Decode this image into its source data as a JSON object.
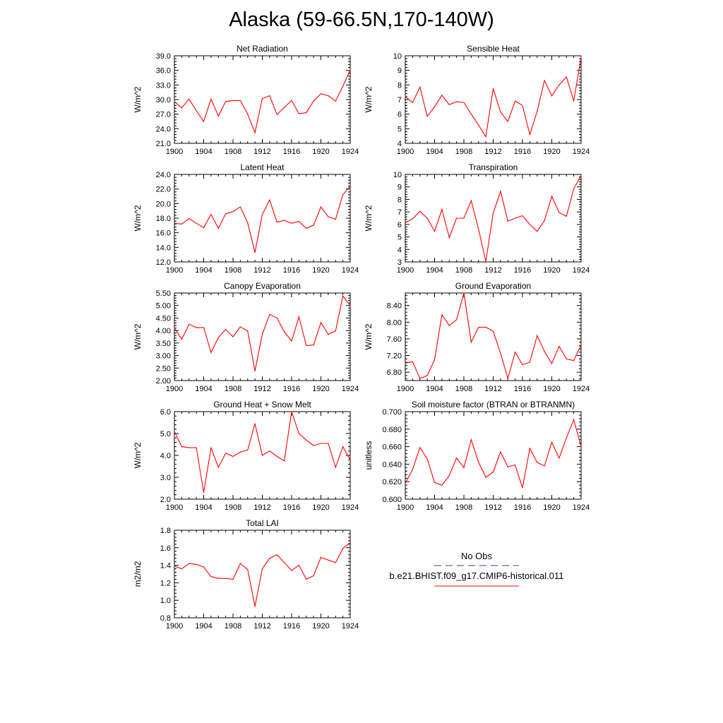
{
  "page_title": "Alaska (59-66.5N,170-140W)",
  "legend": {
    "obs_label": "No Obs",
    "model_label": "b.e21.BHIST.f09_g17.CMIP6-historical.011",
    "obs_color": "#3b3b9a",
    "model_color": "#ff0000"
  },
  "chart_data": [
    {
      "type": "line",
      "title": "Net Radiation",
      "ylabel": "W/m^2",
      "xlim": [
        1900,
        1924
      ],
      "ylim": [
        21.0,
        39.0
      ],
      "xticks": [
        "1900",
        "1904",
        "1908",
        "1912",
        "1916",
        "1920",
        "1924"
      ],
      "yticks": [
        "21.0",
        "24.0",
        "27.0",
        "30.0",
        "33.0",
        "36.0",
        "39.0"
      ],
      "x": [
        1900,
        1901,
        1902,
        1903,
        1904,
        1905,
        1906,
        1907,
        1908,
        1909,
        1910,
        1911,
        1912,
        1913,
        1914,
        1915,
        1916,
        1917,
        1918,
        1919,
        1920,
        1921,
        1922,
        1923,
        1924
      ],
      "values": [
        29.6,
        28.3,
        30.1,
        27.7,
        25.5,
        30.1,
        26.6,
        29.6,
        29.8,
        29.8,
        27.0,
        23.2,
        30.2,
        30.8,
        26.9,
        28.4,
        29.8,
        27.1,
        27.3,
        29.7,
        31.2,
        30.8,
        29.7,
        32.7,
        36.1
      ]
    },
    {
      "type": "line",
      "title": "Sensible Heat",
      "ylabel": "W/m^2",
      "xlim": [
        1900,
        1924
      ],
      "ylim": [
        4,
        10
      ],
      "xticks": [
        "1900",
        "1904",
        "1908",
        "1912",
        "1916",
        "1920",
        "1924"
      ],
      "yticks": [
        "4",
        "5",
        "6",
        "7",
        "8",
        "9",
        "10"
      ],
      "x": [
        1900,
        1901,
        1902,
        1903,
        1904,
        1905,
        1906,
        1907,
        1908,
        1909,
        1910,
        1911,
        1912,
        1913,
        1914,
        1915,
        1916,
        1917,
        1918,
        1919,
        1920,
        1921,
        1922,
        1923,
        1924
      ],
      "values": [
        7.2,
        6.8,
        7.85,
        5.85,
        6.5,
        7.3,
        6.65,
        6.85,
        6.8,
        6.0,
        5.25,
        4.45,
        7.75,
        6.15,
        5.5,
        6.9,
        6.6,
        4.6,
        6.2,
        8.3,
        7.25,
        8.0,
        8.55,
        6.9,
        9.9
      ]
    },
    {
      "type": "line",
      "title": "Latent Heat",
      "ylabel": "W/m^2",
      "xlim": [
        1900,
        1924
      ],
      "ylim": [
        12.0,
        24.0
      ],
      "xticks": [
        "1900",
        "1904",
        "1908",
        "1912",
        "1916",
        "1920",
        "1924"
      ],
      "yticks": [
        "12.0",
        "14.0",
        "16.0",
        "18.0",
        "20.0",
        "22.0",
        "24.0"
      ],
      "x": [
        1900,
        1901,
        1902,
        1903,
        1904,
        1905,
        1906,
        1907,
        1908,
        1909,
        1910,
        1911,
        1912,
        1913,
        1914,
        1915,
        1916,
        1917,
        1918,
        1919,
        1920,
        1921,
        1922,
        1923,
        1924
      ],
      "values": [
        17.3,
        17.2,
        17.95,
        17.3,
        16.7,
        18.5,
        16.6,
        18.6,
        18.9,
        19.55,
        17.35,
        13.3,
        18.5,
        20.5,
        17.45,
        17.7,
        17.3,
        17.55,
        16.6,
        17.05,
        19.55,
        18.2,
        17.85,
        21.2,
        22.4
      ]
    },
    {
      "type": "line",
      "title": "Transpiration",
      "ylabel": "W/m^2",
      "xlim": [
        1900,
        1924
      ],
      "ylim": [
        3,
        10
      ],
      "xticks": [
        "1900",
        "1904",
        "1908",
        "1912",
        "1916",
        "1920",
        "1924"
      ],
      "yticks": [
        "3",
        "4",
        "5",
        "6",
        "7",
        "8",
        "9",
        "10"
      ],
      "x": [
        1900,
        1901,
        1902,
        1903,
        1904,
        1905,
        1906,
        1907,
        1908,
        1909,
        1910,
        1911,
        1912,
        1913,
        1914,
        1915,
        1916,
        1917,
        1918,
        1919,
        1920,
        1921,
        1922,
        1923,
        1924
      ],
      "values": [
        6.15,
        6.45,
        7.05,
        6.5,
        5.45,
        7.2,
        4.95,
        6.5,
        6.5,
        7.9,
        5.6,
        3.05,
        6.9,
        8.65,
        6.25,
        6.5,
        6.7,
        6.0,
        5.45,
        6.3,
        8.25,
        6.95,
        6.65,
        8.85,
        9.9
      ]
    },
    {
      "type": "line",
      "title": "Canopy Evaporation",
      "ylabel": "W/m^2",
      "xlim": [
        1900,
        1924
      ],
      "ylim": [
        2.0,
        5.5
      ],
      "xticks": [
        "1900",
        "1904",
        "1908",
        "1912",
        "1916",
        "1920",
        "1924"
      ],
      "yticks": [
        "2.00",
        "2.50",
        "3.00",
        "3.50",
        "4.00",
        "4.50",
        "5.00",
        "5.50"
      ],
      "x": [
        1900,
        1901,
        1902,
        1903,
        1904,
        1905,
        1906,
        1907,
        1908,
        1909,
        1910,
        1911,
        1912,
        1913,
        1914,
        1915,
        1916,
        1917,
        1918,
        1919,
        1920,
        1921,
        1922,
        1923,
        1924
      ],
      "values": [
        4.1,
        3.65,
        4.25,
        4.12,
        4.12,
        3.12,
        3.72,
        4.05,
        3.75,
        4.15,
        3.98,
        2.38,
        3.85,
        4.65,
        4.5,
        3.95,
        3.58,
        4.55,
        3.4,
        3.42,
        4.32,
        3.85,
        3.98,
        5.38,
        5.0
      ]
    },
    {
      "type": "line",
      "title": "Ground Evaporation",
      "ylabel": "W/m^2",
      "xlim": [
        1900,
        1924
      ],
      "ylim": [
        6.6,
        8.7
      ],
      "xticks": [
        "1900",
        "1904",
        "1908",
        "1912",
        "1916",
        "1920",
        "1924"
      ],
      "yticks": [
        "6.80",
        "7.20",
        "7.60",
        "8.00",
        "8.40"
      ],
      "x": [
        1900,
        1901,
        1902,
        1903,
        1904,
        1905,
        1906,
        1907,
        1908,
        1909,
        1910,
        1911,
        1912,
        1913,
        1914,
        1915,
        1916,
        1917,
        1918,
        1919,
        1920,
        1921,
        1922,
        1923,
        1924
      ],
      "values": [
        7.02,
        7.05,
        6.65,
        6.72,
        7.1,
        8.18,
        7.92,
        8.06,
        8.7,
        7.52,
        7.88,
        7.88,
        7.78,
        7.26,
        6.65,
        7.28,
        6.98,
        7.04,
        7.68,
        7.3,
        7.01,
        7.42,
        7.12,
        7.08,
        7.46
      ]
    },
    {
      "type": "line",
      "title": "Ground Heat + Snow Melt",
      "ylabel": "W/m^2",
      "xlim": [
        1900,
        1924
      ],
      "ylim": [
        2.0,
        6.0
      ],
      "xticks": [
        "1900",
        "1904",
        "1908",
        "1912",
        "1916",
        "1920",
        "1924"
      ],
      "yticks": [
        "2.0",
        "3.0",
        "4.0",
        "5.0",
        "6.0"
      ],
      "x": [
        1900,
        1901,
        1902,
        1903,
        1904,
        1905,
        1906,
        1907,
        1908,
        1909,
        1910,
        1911,
        1912,
        1913,
        1914,
        1915,
        1916,
        1917,
        1918,
        1919,
        1920,
        1921,
        1922,
        1923,
        1924
      ],
      "values": [
        5.1,
        4.4,
        4.35,
        4.35,
        2.3,
        4.35,
        3.45,
        4.1,
        3.95,
        4.15,
        4.25,
        5.45,
        4.0,
        4.2,
        3.95,
        3.75,
        6.0,
        5.0,
        4.7,
        4.45,
        4.55,
        4.55,
        3.45,
        4.4,
        3.8
      ]
    },
    {
      "type": "line",
      "title": "Soil moisture factor (BTRAN or BTRANMN)",
      "ylabel": "unitless",
      "xlim": [
        1900,
        1924
      ],
      "ylim": [
        0.6,
        0.7
      ],
      "xticks": [
        "1900",
        "1904",
        "1908",
        "1912",
        "1916",
        "1920",
        "1924"
      ],
      "yticks": [
        "0.600",
        "0.620",
        "0.640",
        "0.660",
        "0.680",
        "0.700"
      ],
      "x": [
        1900,
        1901,
        1902,
        1903,
        1904,
        1905,
        1906,
        1907,
        1908,
        1909,
        1910,
        1911,
        1912,
        1913,
        1914,
        1915,
        1916,
        1917,
        1918,
        1919,
        1920,
        1921,
        1922,
        1923,
        1924
      ],
      "values": [
        0.618,
        0.634,
        0.659,
        0.646,
        0.619,
        0.616,
        0.627,
        0.647,
        0.636,
        0.668,
        0.642,
        0.625,
        0.631,
        0.654,
        0.637,
        0.639,
        0.613,
        0.658,
        0.642,
        0.638,
        0.665,
        0.647,
        0.67,
        0.691,
        0.66
      ]
    },
    {
      "type": "line",
      "title": "Total LAI",
      "ylabel": "m2/m2",
      "xlim": [
        1900,
        1924
      ],
      "ylim": [
        0.8,
        1.8
      ],
      "xticks": [
        "1900",
        "1904",
        "1908",
        "1912",
        "1916",
        "1920",
        "1924"
      ],
      "yticks": [
        "0.8",
        "1.0",
        "1.2",
        "1.4",
        "1.6",
        "1.8"
      ],
      "x": [
        1900,
        1901,
        1902,
        1903,
        1904,
        1905,
        1906,
        1907,
        1908,
        1909,
        1910,
        1911,
        1912,
        1913,
        1914,
        1915,
        1916,
        1917,
        1918,
        1919,
        1920,
        1921,
        1922,
        1923,
        1924
      ],
      "values": [
        1.39,
        1.36,
        1.42,
        1.41,
        1.38,
        1.27,
        1.25,
        1.25,
        1.24,
        1.42,
        1.35,
        0.93,
        1.36,
        1.48,
        1.52,
        1.43,
        1.34,
        1.4,
        1.24,
        1.28,
        1.49,
        1.46,
        1.43,
        1.59,
        1.66
      ]
    }
  ]
}
